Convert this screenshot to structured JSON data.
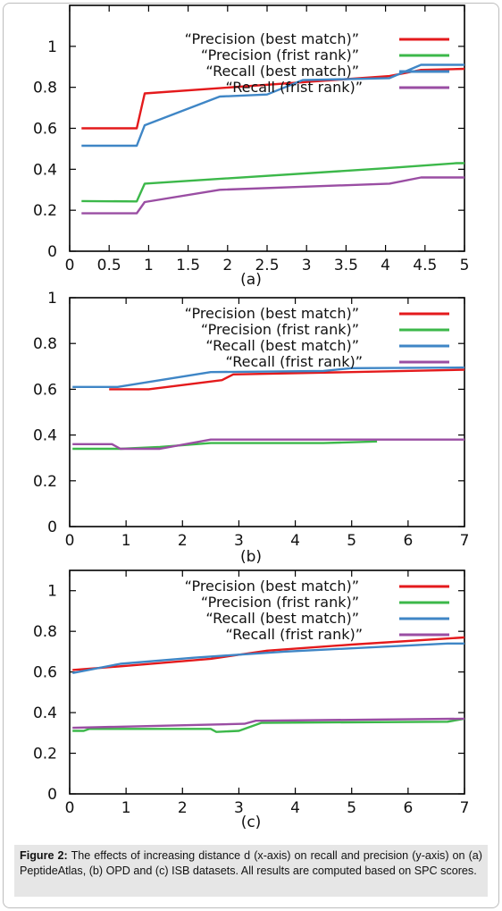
{
  "legend": [
    {
      "label": "“Precision  (best match)”",
      "color": "#e41a1c"
    },
    {
      "label": "“Precision  (frist   rank)”",
      "color": "#3cb84a"
    },
    {
      "label": "“Recall  (best match)”",
      "color": "#3f86c6"
    },
    {
      "label": "“Recall  (frist rank)”",
      "color": "#9a4ea3"
    }
  ],
  "caption": {
    "label": "Figure 2:",
    "text": "The effects of increasing distance d (x-axis) on recall and precision (y-axis) on (a) PeptideAtlas, (b) OPD and (c) ISB datasets. All results are computed based on SPC scores."
  },
  "chart_data": [
    {
      "type": "line",
      "panel_label": "(a)",
      "xlim": [
        0,
        5
      ],
      "ylim": [
        0,
        1.2
      ],
      "x_ticks": [
        "0",
        "0.5",
        "1",
        "1.5",
        "2",
        "2.5",
        "3",
        "3.5",
        "4",
        "4.5",
        "5"
      ],
      "y_ticks": [
        "0",
        "0.2",
        "0.4",
        "0.6",
        "0.8",
        "1"
      ],
      "grid": false,
      "legend_position": "top-right",
      "series": [
        {
          "name": "“Precision  (best match)”",
          "color": "#e41a1c",
          "x": [
            0.15,
            0.85,
            0.95,
            4.05,
            4.45,
            5.0
          ],
          "y": [
            0.6,
            0.6,
            0.77,
            0.855,
            0.885,
            0.89
          ]
        },
        {
          "name": "“Precision  (frist   rank)”",
          "color": "#3cb84a",
          "x": [
            0.15,
            0.85,
            0.95,
            4.0,
            4.9,
            5.0
          ],
          "y": [
            0.245,
            0.243,
            0.33,
            0.405,
            0.43,
            0.43
          ]
        },
        {
          "name": "“Recall  (best match)”",
          "color": "#3f86c6",
          "x": [
            0.15,
            0.85,
            0.95,
            1.9,
            2.5,
            2.95,
            4.05,
            4.45,
            5.0
          ],
          "y": [
            0.515,
            0.515,
            0.615,
            0.755,
            0.765,
            0.835,
            0.845,
            0.91,
            0.91
          ]
        },
        {
          "name": "“Recall  (frist rank)”",
          "color": "#9a4ea3",
          "x": [
            0.15,
            0.85,
            0.95,
            1.9,
            4.05,
            4.45,
            5.0
          ],
          "y": [
            0.185,
            0.185,
            0.24,
            0.3,
            0.33,
            0.36,
            0.36
          ]
        }
      ]
    },
    {
      "type": "line",
      "panel_label": "(b)",
      "xlim": [
        0,
        7
      ],
      "ylim": [
        0,
        1
      ],
      "x_ticks": [
        "0",
        "1",
        "2",
        "3",
        "4",
        "5",
        "6",
        "7"
      ],
      "y_ticks": [
        "0",
        "0.2",
        "0.4",
        "0.6",
        "0.8",
        "1"
      ],
      "grid": false,
      "legend_position": "top-right",
      "series": [
        {
          "name": "“Precision  (best match)”",
          "color": "#e41a1c",
          "x": [
            0.7,
            1.4,
            2.7,
            2.9,
            7.0
          ],
          "y": [
            0.6,
            0.6,
            0.64,
            0.665,
            0.685
          ]
        },
        {
          "name": "“Precision  (frist   rank)”",
          "color": "#3cb84a",
          "x": [
            0.05,
            0.9,
            1.6,
            2.5,
            4.5,
            5.45
          ],
          "y": [
            0.34,
            0.34,
            0.348,
            0.365,
            0.365,
            0.372
          ]
        },
        {
          "name": "“Recall  (best match)”",
          "color": "#3f86c6",
          "x": [
            0.05,
            0.85,
            2.5,
            4.5,
            5.0,
            7.0
          ],
          "y": [
            0.61,
            0.61,
            0.675,
            0.68,
            0.692,
            0.695
          ]
        },
        {
          "name": "“Recall  (frist rank)”",
          "color": "#9a4ea3",
          "x": [
            0.05,
            0.75,
            0.9,
            1.6,
            2.5,
            7.0
          ],
          "y": [
            0.36,
            0.36,
            0.34,
            0.34,
            0.38,
            0.38
          ]
        }
      ]
    },
    {
      "type": "line",
      "panel_label": "(c)",
      "xlim": [
        0,
        7
      ],
      "ylim": [
        0,
        1.1
      ],
      "x_ticks": [
        "0",
        "1",
        "2",
        "3",
        "4",
        "5",
        "6",
        "7"
      ],
      "y_ticks": [
        "0",
        "0.2",
        "0.4",
        "0.6",
        "0.8",
        "1"
      ],
      "grid": false,
      "legend_position": "top-right",
      "series": [
        {
          "name": "“Precision  (best match)”",
          "color": "#e41a1c",
          "x": [
            0.05,
            1.0,
            2.5,
            3.5,
            5.0,
            7.0
          ],
          "y": [
            0.61,
            0.63,
            0.665,
            0.705,
            0.735,
            0.77
          ]
        },
        {
          "name": "“Precision  (frist   rank)”",
          "color": "#3cb84a",
          "x": [
            0.05,
            0.25,
            0.35,
            2.5,
            2.6,
            3.0,
            3.4,
            6.7,
            7.0
          ],
          "y": [
            0.31,
            0.31,
            0.32,
            0.32,
            0.305,
            0.31,
            0.35,
            0.355,
            0.37
          ]
        },
        {
          "name": "“Recall  (best match)”",
          "color": "#3f86c6",
          "x": [
            0.05,
            0.9,
            2.2,
            3.8,
            6.7,
            7.0
          ],
          "y": [
            0.595,
            0.64,
            0.67,
            0.7,
            0.74,
            0.74
          ]
        },
        {
          "name": "“Recall  (frist rank)”",
          "color": "#9a4ea3",
          "x": [
            0.05,
            3.1,
            3.3,
            7.0
          ],
          "y": [
            0.325,
            0.345,
            0.36,
            0.37
          ]
        }
      ]
    }
  ]
}
